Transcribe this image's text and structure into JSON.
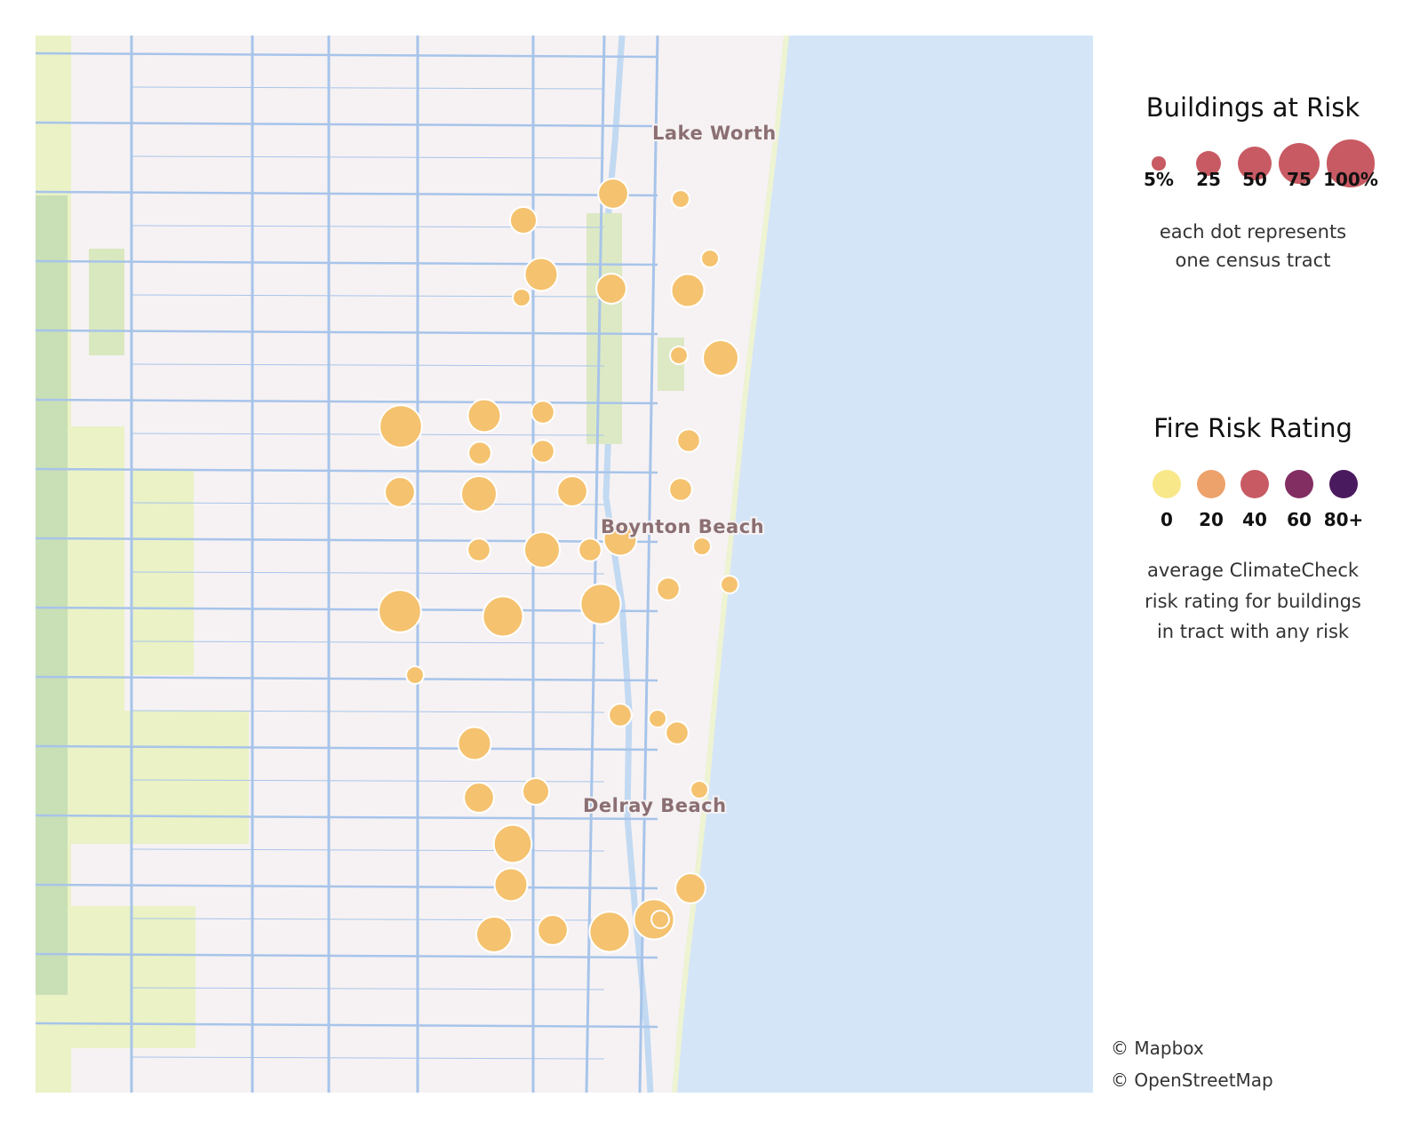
{
  "map": {
    "places": [
      "Lake Worth",
      "Boynton Beach",
      "Delray Beach"
    ],
    "colors": {
      "land": "#f6f2f3",
      "ocean": "#d4e5f8",
      "roads": "#a7c4ea",
      "parks": "#eaf2c6",
      "green": "#c9dfb5",
      "dot_fill": "#f5c26f"
    }
  },
  "size_legend": {
    "title": "Buildings at Risk",
    "items": [
      {
        "label": "5%",
        "value": 5
      },
      {
        "label": "25",
        "value": 25
      },
      {
        "label": "50",
        "value": 50
      },
      {
        "label": "75",
        "value": 75
      },
      {
        "label": "100%",
        "value": 100
      }
    ],
    "dot_color": "#c85a63",
    "note_line1": "each dot represents",
    "note_line2": "one census tract"
  },
  "color_legend": {
    "title": "Fire Risk Rating",
    "items": [
      {
        "label": "0",
        "color": "#f8e88a"
      },
      {
        "label": "20",
        "color": "#eda26b"
      },
      {
        "label": "40",
        "color": "#c85a63"
      },
      {
        "label": "60",
        "color": "#822e62"
      },
      {
        "label": "80+",
        "color": "#4a1a5e"
      }
    ],
    "note_line1": "average ClimateCheck",
    "note_line2": "risk rating for buildings",
    "note_line3": "in tract with any risk"
  },
  "attribution": {
    "line1": "© Mapbox",
    "line2": "© OpenStreetMap"
  },
  "tracts": {
    "fire_risk_rating": "0-20",
    "buildings_at_risk_pct": [
      20,
      15,
      25,
      5,
      20,
      5,
      30,
      5,
      5,
      25,
      45,
      25,
      10,
      10,
      10,
      20,
      30,
      20,
      10,
      10,
      10,
      30,
      25,
      10,
      5,
      45,
      40,
      5,
      10,
      40,
      5,
      25,
      10,
      5,
      10,
      20,
      15,
      5,
      35,
      25,
      30,
      20,
      40,
      40,
      20,
      5
    ]
  }
}
